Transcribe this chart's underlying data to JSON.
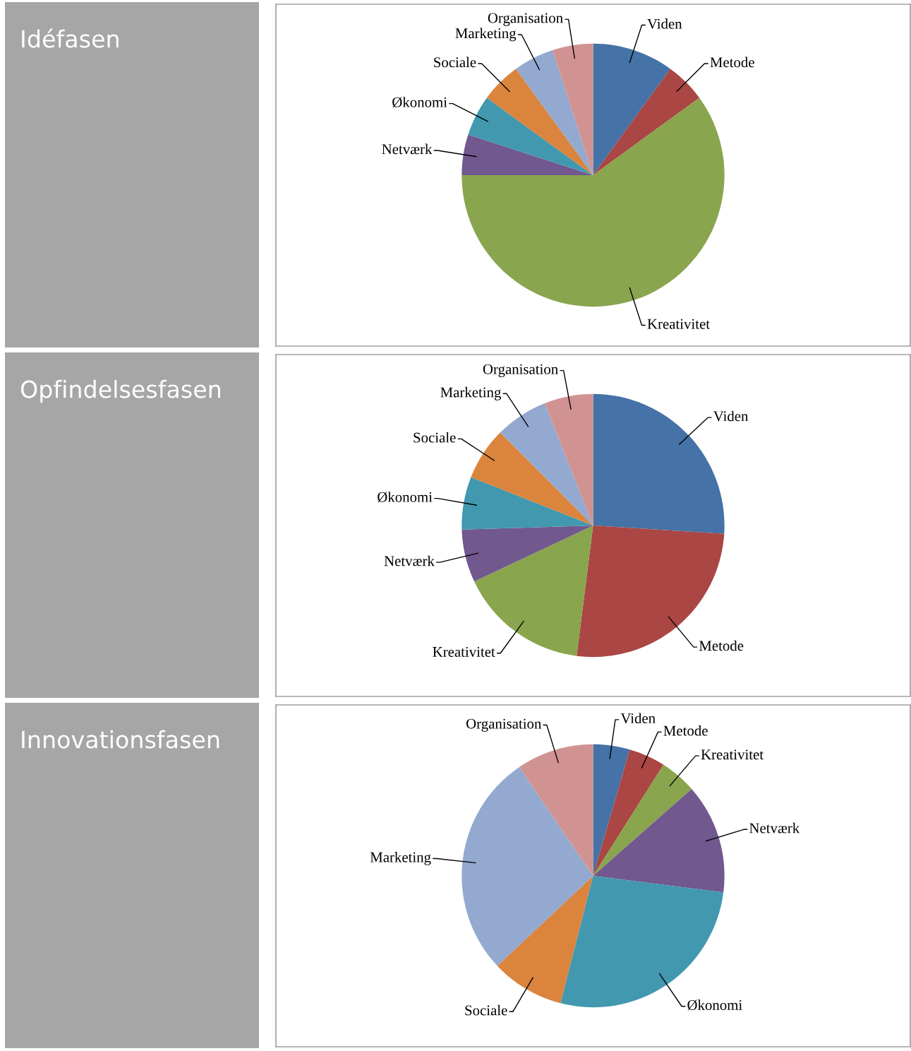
{
  "chart_data": [
    {
      "type": "pie",
      "title": "Idéfasen",
      "categories": [
        "Viden",
        "Metode",
        "Kreativitet",
        "Netværk",
        "Økonomi",
        "Sociale",
        "Marketing",
        "Organisation"
      ],
      "values": [
        10,
        5,
        60,
        5,
        5,
        5,
        5,
        5
      ],
      "colors": [
        "#4572a7",
        "#aa4643",
        "#89a54e",
        "#71588f",
        "#4198af",
        "#db843d",
        "#93a9cf",
        "#d19392"
      ]
    },
    {
      "type": "pie",
      "title": "Opfindelsesfasen",
      "categories": [
        "Viden",
        "Metode",
        "Kreativitet",
        "Netværk",
        "Økonomi",
        "Sociale",
        "Marketing",
        "Organisation"
      ],
      "values": [
        26,
        26,
        16,
        6.5,
        6.5,
        6.5,
        6.5,
        6
      ],
      "colors": [
        "#4572a7",
        "#aa4643",
        "#89a54e",
        "#71588f",
        "#4198af",
        "#db843d",
        "#93a9cf",
        "#d19392"
      ]
    },
    {
      "type": "pie",
      "title": "Innovationsfasen",
      "categories": [
        "Viden",
        "Metode",
        "Kreativitet",
        "Netværk",
        "Økonomi",
        "Sociale",
        "Marketing",
        "Organisation"
      ],
      "values": [
        4.5,
        4.5,
        4.5,
        13.5,
        27,
        9,
        27.5,
        9.5
      ],
      "colors": [
        "#4572a7",
        "#aa4643",
        "#89a54e",
        "#71588f",
        "#4198af",
        "#db843d",
        "#93a9cf",
        "#d19392"
      ]
    }
  ]
}
